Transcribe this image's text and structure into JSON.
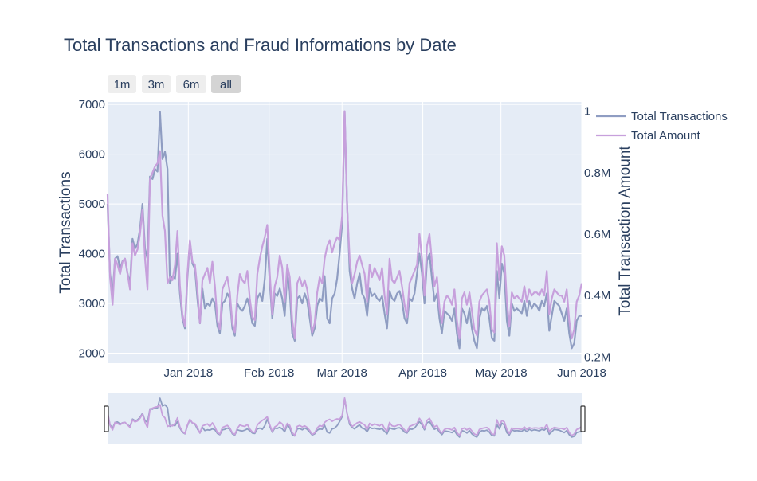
{
  "chart_data": {
    "type": "line",
    "title": "Total Transactions and Fraud Informations by Date",
    "ylabel": "Total Transactions",
    "y2label": "Total Transaction Amount",
    "ylim": [
      1800,
      7050
    ],
    "y2lim": [
      0.18,
      1.03
    ],
    "y_ticks": [
      2000,
      3000,
      4000,
      5000,
      6000,
      7000
    ],
    "y_tick_labels": [
      "2000",
      "3000",
      "4000",
      "5000",
      "6000",
      "7000"
    ],
    "y2_ticks": [
      0.2,
      0.4,
      0.6,
      0.8,
      1.0
    ],
    "y2_tick_labels": [
      "0.2M",
      "0.4M",
      "0.6M",
      "0.8M",
      "1"
    ],
    "x_range": [
      "2017-12-01",
      "2018-06-01"
    ],
    "x_ticks": [
      "2018-01-01",
      "2018-02-01",
      "2018-03-01",
      "2018-04-01",
      "2018-05-01",
      "2018-06-01"
    ],
    "x_tick_labels": [
      "Jan 2018",
      "Feb 2018",
      "Mar 2018",
      "Apr 2018",
      "May 2018",
      "Jun 2018"
    ],
    "grid": true,
    "legend_position": "top-right",
    "range_selector": [
      "1m",
      "3m",
      "6m",
      "all"
    ],
    "range_selector_active": "all",
    "range_slider": true,
    "colors": {
      "total_transactions": "#8f9dc2",
      "total_amount": "#c7a0dc",
      "plot_bg": "#e5ecf6",
      "text": "#2a3f5f"
    },
    "x_start": "2017-12-01",
    "series": [
      {
        "name": "Total Transactions",
        "axis": "y",
        "values": [
          5000,
          3600,
          3200,
          3900,
          3950,
          3700,
          3850,
          3900,
          3600,
          3400,
          4300,
          4100,
          4200,
          4500,
          5000,
          4100,
          3900,
          5550,
          5500,
          5700,
          5650,
          6850,
          5900,
          6050,
          5700,
          3400,
          3550,
          3500,
          4000,
          3200,
          2700,
          2500,
          3500,
          4250,
          3800,
          3700,
          3100,
          2600,
          3300,
          2900,
          3000,
          2950,
          3100,
          3000,
          2550,
          2400,
          3000,
          3050,
          3200,
          3100,
          2500,
          2350,
          3000,
          2900,
          2850,
          2950,
          3100,
          2900,
          2600,
          2550,
          3100,
          3200,
          3050,
          3500,
          4300,
          3400,
          2700,
          3200,
          3150,
          3300,
          3100,
          2750,
          3600,
          3250,
          2400,
          2250,
          3100,
          3150,
          3000,
          3200,
          3050,
          2700,
          2350,
          2500,
          2950,
          3100,
          3050,
          3550,
          2700,
          2600,
          3100,
          3200,
          3500,
          4000,
          4600,
          6850,
          5000,
          3650,
          3300,
          3100,
          3400,
          3600,
          3200,
          3100,
          2750,
          3300,
          3150,
          3200,
          3100,
          3050,
          3150,
          2800,
          2500,
          3250,
          3100,
          3050,
          3200,
          3250,
          3050,
          2700,
          2600,
          3100,
          3050,
          3200,
          3600,
          4000,
          3600,
          3000,
          3850,
          4000,
          3500,
          3050,
          3200,
          2700,
          2400,
          2850,
          2800,
          2750,
          2650,
          2900,
          2400,
          2100,
          2900,
          2800,
          2600,
          2900,
          2500,
          2250,
          2100,
          2700,
          2900,
          2850,
          2950,
          2700,
          2300,
          2250,
          3650,
          3100,
          3800,
          3600,
          2650,
          2350,
          3000,
          2850,
          2900,
          2850,
          2800,
          3050,
          2750,
          3050,
          2900,
          3000,
          2950,
          2850,
          3050,
          2950,
          3200,
          2450,
          2750,
          3050,
          3000,
          2950,
          2800,
          2650,
          2900,
          2400,
          2100,
          2200,
          2650,
          2750,
          2750
        ]
      },
      {
        "name": "Total Amount",
        "axis": "y2",
        "values": [
          0.73,
          0.46,
          0.37,
          0.52,
          0.5,
          0.47,
          0.51,
          0.52,
          0.47,
          0.42,
          0.57,
          0.53,
          0.55,
          0.6,
          0.68,
          0.52,
          0.42,
          0.78,
          0.8,
          0.82,
          0.83,
          0.87,
          0.66,
          0.61,
          0.44,
          0.46,
          0.45,
          0.5,
          0.61,
          0.43,
          0.34,
          0.3,
          0.47,
          0.58,
          0.51,
          0.5,
          0.42,
          0.31,
          0.45,
          0.47,
          0.49,
          0.44,
          0.51,
          0.43,
          0.32,
          0.29,
          0.42,
          0.44,
          0.46,
          0.41,
          0.31,
          0.28,
          0.4,
          0.47,
          0.45,
          0.44,
          0.48,
          0.39,
          0.33,
          0.32,
          0.47,
          0.52,
          0.56,
          0.59,
          0.63,
          0.47,
          0.34,
          0.43,
          0.46,
          0.53,
          0.49,
          0.38,
          0.5,
          0.46,
          0.32,
          0.26,
          0.44,
          0.46,
          0.43,
          0.45,
          0.42,
          0.36,
          0.28,
          0.31,
          0.41,
          0.46,
          0.44,
          0.52,
          0.56,
          0.58,
          0.54,
          0.57,
          0.59,
          0.58,
          0.66,
          1.0,
          0.69,
          0.52,
          0.44,
          0.47,
          0.51,
          0.53,
          0.5,
          0.47,
          0.38,
          0.5,
          0.46,
          0.49,
          0.47,
          0.45,
          0.49,
          0.4,
          0.34,
          0.52,
          0.45,
          0.44,
          0.46,
          0.48,
          0.43,
          0.37,
          0.33,
          0.44,
          0.46,
          0.48,
          0.5,
          0.6,
          0.52,
          0.4,
          0.56,
          0.6,
          0.51,
          0.43,
          0.46,
          0.36,
          0.31,
          0.38,
          0.4,
          0.39,
          0.37,
          0.42,
          0.32,
          0.26,
          0.39,
          0.41,
          0.37,
          0.41,
          0.35,
          0.29,
          0.27,
          0.38,
          0.4,
          0.41,
          0.42,
          0.38,
          0.29,
          0.28,
          0.57,
          0.45,
          0.56,
          0.53,
          0.38,
          0.3,
          0.41,
          0.39,
          0.4,
          0.39,
          0.38,
          0.43,
          0.38,
          0.42,
          0.4,
          0.41,
          0.41,
          0.4,
          0.42,
          0.4,
          0.48,
          0.34,
          0.39,
          0.42,
          0.41,
          0.4,
          0.4,
          0.38,
          0.42,
          0.32,
          0.26,
          0.29,
          0.38,
          0.4,
          0.44
        ]
      }
    ]
  }
}
